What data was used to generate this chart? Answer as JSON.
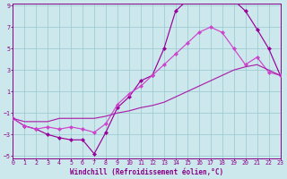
{
  "bg_color": "#cde8ec",
  "grid_color": "#9fcdd4",
  "line_color_curvy": "#990099",
  "line_color_upper": "#cc44cc",
  "line_color_lower": "#aa22aa",
  "xlabel": "Windchill (Refroidissement éolien,°C)",
  "xmin": 0,
  "xmax": 23,
  "ymin": -5,
  "ymax": 9,
  "yticks": [
    -5,
    -3,
    -1,
    1,
    3,
    5,
    7,
    9
  ],
  "xticks": [
    0,
    1,
    2,
    3,
    4,
    5,
    6,
    7,
    8,
    9,
    10,
    11,
    12,
    13,
    14,
    15,
    16,
    17,
    18,
    19,
    20,
    21,
    22,
    23
  ],
  "line_curvy_x": [
    0,
    1,
    2,
    3,
    4,
    5,
    6,
    7,
    8,
    9,
    10,
    11,
    12,
    13,
    14,
    15,
    16,
    17,
    18,
    19,
    20,
    21,
    22,
    23
  ],
  "line_curvy_y": [
    -1.5,
    -2.2,
    -2.5,
    -3.0,
    -3.3,
    -3.5,
    -3.5,
    -4.8,
    -2.8,
    -0.5,
    0.5,
    2.0,
    2.5,
    5.0,
    8.5,
    9.5,
    9.8,
    9.8,
    9.5,
    9.5,
    8.5,
    6.8,
    5.0,
    2.5
  ],
  "line_upper_x": [
    0,
    1,
    2,
    3,
    4,
    5,
    6,
    7,
    8,
    9,
    10,
    11,
    12,
    13,
    14,
    15,
    16,
    17,
    18,
    19,
    20,
    21,
    22,
    23
  ],
  "line_upper_y": [
    -1.5,
    -2.2,
    -2.5,
    -2.3,
    -2.5,
    -2.3,
    -2.5,
    -2.8,
    -2.0,
    -0.2,
    0.8,
    1.5,
    2.5,
    3.5,
    4.5,
    5.5,
    6.5,
    7.0,
    6.5,
    5.0,
    3.5,
    4.2,
    2.8,
    2.5
  ],
  "line_lower_x": [
    0,
    1,
    2,
    3,
    4,
    5,
    6,
    7,
    8,
    9,
    10,
    11,
    12,
    13,
    14,
    15,
    16,
    17,
    18,
    19,
    20,
    21,
    22,
    23
  ],
  "line_lower_y": [
    -1.5,
    -1.8,
    -1.8,
    -1.8,
    -1.5,
    -1.5,
    -1.5,
    -1.5,
    -1.3,
    -1.0,
    -0.8,
    -0.5,
    -0.3,
    0.0,
    0.5,
    1.0,
    1.5,
    2.0,
    2.5,
    3.0,
    3.3,
    3.5,
    3.0,
    2.5
  ]
}
